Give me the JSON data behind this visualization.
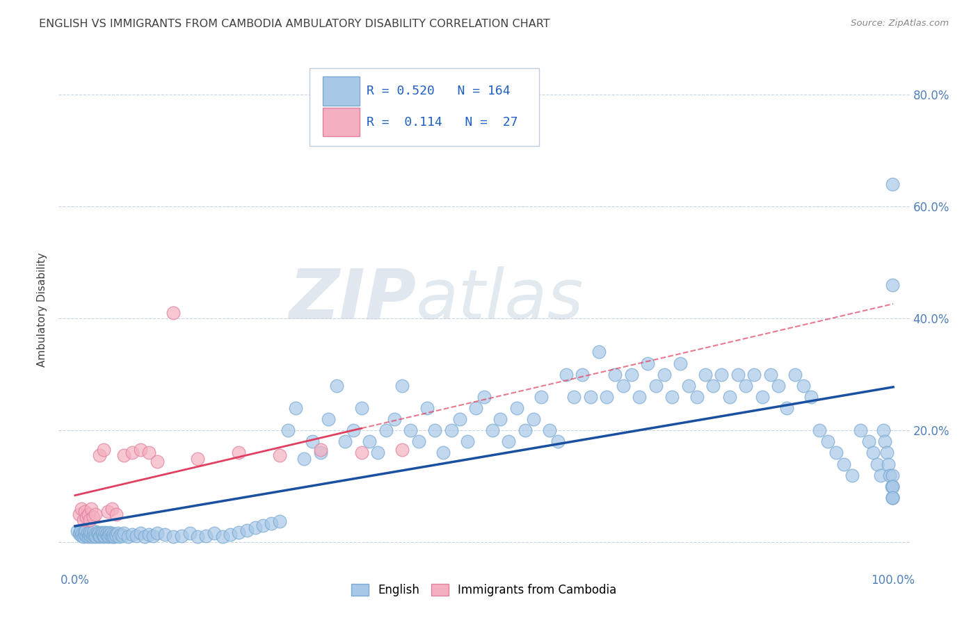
{
  "title": "ENGLISH VS IMMIGRANTS FROM CAMBODIA AMBULATORY DISABILITY CORRELATION CHART",
  "source": "Source: ZipAtlas.com",
  "ylabel": "Ambulatory Disability",
  "xlim": [
    -0.02,
    1.02
  ],
  "ylim": [
    -0.05,
    0.88
  ],
  "x_ticks": [
    0.0,
    0.1,
    0.2,
    0.3,
    0.4,
    0.5,
    0.6,
    0.7,
    0.8,
    0.9,
    1.0
  ],
  "x_tick_labels": [
    "0.0%",
    "",
    "",
    "",
    "",
    "",
    "",
    "",
    "",
    "",
    "100.0%"
  ],
  "y_ticks": [
    0.0,
    0.2,
    0.4,
    0.6,
    0.8
  ],
  "y_tick_labels": [
    "",
    "20.0%",
    "40.0%",
    "60.0%",
    "80.0%"
  ],
  "legend_r_english": "0.520",
  "legend_n_english": "164",
  "legend_r_cambodia": "0.114",
  "legend_n_cambodia": "27",
  "english_color": "#a8c8e8",
  "english_edge_color": "#7aaad0",
  "cambodia_color": "#f4b0c0",
  "cambodia_edge_color": "#e080a0",
  "english_line_color": "#1a50a0",
  "cambodia_line_color": "#e04060",
  "background_color": "#ffffff",
  "grid_color": "#c8d4e0",
  "title_color": "#404040",
  "source_color": "#888888",
  "tick_color": "#5080b8",
  "ylabel_color": "#404040",
  "watermark_color": "#d0dce8",
  "english_x": [
    0.003,
    0.005,
    0.006,
    0.007,
    0.008,
    0.009,
    0.01,
    0.011,
    0.012,
    0.013,
    0.014,
    0.015,
    0.016,
    0.017,
    0.018,
    0.019,
    0.02,
    0.021,
    0.022,
    0.023,
    0.024,
    0.025,
    0.026,
    0.027,
    0.028,
    0.029,
    0.03,
    0.031,
    0.032,
    0.033,
    0.034,
    0.035,
    0.036,
    0.037,
    0.038,
    0.039,
    0.04,
    0.041,
    0.042,
    0.043,
    0.044,
    0.045,
    0.046,
    0.047,
    0.048,
    0.049,
    0.05,
    0.052,
    0.054,
    0.056,
    0.058,
    0.06,
    0.065,
    0.07,
    0.075,
    0.08,
    0.085,
    0.09,
    0.095,
    0.1,
    0.11,
    0.12,
    0.13,
    0.14,
    0.15,
    0.16,
    0.17,
    0.18,
    0.19,
    0.2,
    0.21,
    0.22,
    0.23,
    0.24,
    0.25,
    0.26,
    0.27,
    0.28,
    0.29,
    0.3,
    0.31,
    0.32,
    0.33,
    0.34,
    0.35,
    0.36,
    0.37,
    0.38,
    0.39,
    0.4,
    0.41,
    0.42,
    0.43,
    0.44,
    0.45,
    0.46,
    0.47,
    0.48,
    0.49,
    0.5,
    0.51,
    0.52,
    0.53,
    0.54,
    0.55,
    0.56,
    0.57,
    0.58,
    0.59,
    0.6,
    0.61,
    0.62,
    0.63,
    0.64,
    0.65,
    0.66,
    0.67,
    0.68,
    0.69,
    0.7,
    0.71,
    0.72,
    0.73,
    0.74,
    0.75,
    0.76,
    0.77,
    0.78,
    0.79,
    0.8,
    0.81,
    0.82,
    0.83,
    0.84,
    0.85,
    0.86,
    0.87,
    0.88,
    0.89,
    0.9,
    0.91,
    0.92,
    0.93,
    0.94,
    0.95,
    0.96,
    0.97,
    0.975,
    0.98,
    0.985,
    0.988,
    0.99,
    0.992,
    0.994,
    0.996,
    0.998,
    0.999,
    0.999,
    0.999,
    0.999,
    0.999,
    0.999,
    0.999,
    0.999
  ],
  "english_y": [
    0.02,
    0.015,
    0.018,
    0.022,
    0.012,
    0.016,
    0.01,
    0.018,
    0.014,
    0.02,
    0.012,
    0.016,
    0.01,
    0.014,
    0.018,
    0.012,
    0.016,
    0.01,
    0.014,
    0.02,
    0.012,
    0.015,
    0.01,
    0.018,
    0.014,
    0.016,
    0.01,
    0.012,
    0.018,
    0.014,
    0.016,
    0.01,
    0.012,
    0.018,
    0.014,
    0.016,
    0.01,
    0.012,
    0.018,
    0.014,
    0.016,
    0.01,
    0.012,
    0.015,
    0.01,
    0.014,
    0.012,
    0.016,
    0.01,
    0.014,
    0.012,
    0.016,
    0.01,
    0.014,
    0.012,
    0.016,
    0.01,
    0.014,
    0.012,
    0.016,
    0.014,
    0.01,
    0.012,
    0.016,
    0.01,
    0.012,
    0.016,
    0.01,
    0.014,
    0.018,
    0.022,
    0.026,
    0.03,
    0.034,
    0.038,
    0.2,
    0.24,
    0.15,
    0.18,
    0.16,
    0.22,
    0.28,
    0.18,
    0.2,
    0.24,
    0.18,
    0.16,
    0.2,
    0.22,
    0.28,
    0.2,
    0.18,
    0.24,
    0.2,
    0.16,
    0.2,
    0.22,
    0.18,
    0.24,
    0.26,
    0.2,
    0.22,
    0.18,
    0.24,
    0.2,
    0.22,
    0.26,
    0.2,
    0.18,
    0.3,
    0.26,
    0.3,
    0.26,
    0.34,
    0.26,
    0.3,
    0.28,
    0.3,
    0.26,
    0.32,
    0.28,
    0.3,
    0.26,
    0.32,
    0.28,
    0.26,
    0.3,
    0.28,
    0.3,
    0.26,
    0.3,
    0.28,
    0.3,
    0.26,
    0.3,
    0.28,
    0.24,
    0.3,
    0.28,
    0.26,
    0.2,
    0.18,
    0.16,
    0.14,
    0.12,
    0.2,
    0.18,
    0.16,
    0.14,
    0.12,
    0.2,
    0.18,
    0.16,
    0.14,
    0.12,
    0.1,
    0.08,
    0.12,
    0.1,
    0.08,
    0.64,
    0.46,
    0.1,
    0.08
  ],
  "cambodia_x": [
    0.005,
    0.008,
    0.01,
    0.012,
    0.014,
    0.016,
    0.018,
    0.02,
    0.022,
    0.025,
    0.03,
    0.035,
    0.04,
    0.045,
    0.05,
    0.06,
    0.07,
    0.08,
    0.09,
    0.1,
    0.12,
    0.15,
    0.2,
    0.25,
    0.3,
    0.35,
    0.4
  ],
  "cambodia_y": [
    0.05,
    0.06,
    0.04,
    0.055,
    0.045,
    0.05,
    0.04,
    0.06,
    0.045,
    0.05,
    0.155,
    0.165,
    0.055,
    0.06,
    0.05,
    0.155,
    0.16,
    0.165,
    0.16,
    0.145,
    0.41,
    0.15,
    0.16,
    0.155,
    0.165,
    0.16,
    0.165
  ]
}
